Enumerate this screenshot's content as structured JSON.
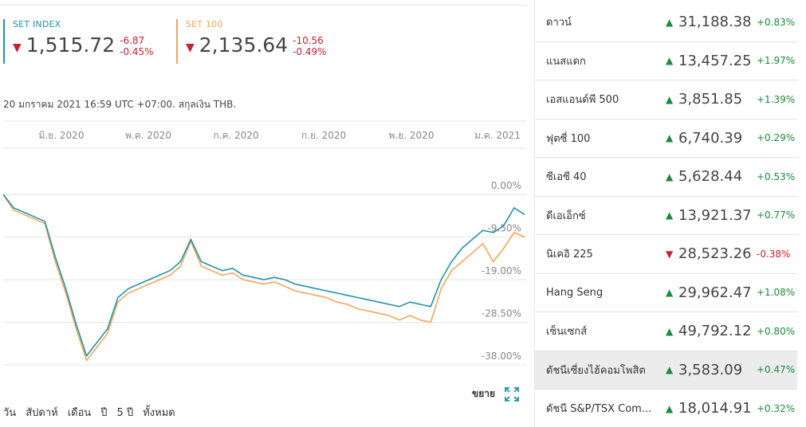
{
  "indices": [
    {
      "name": "SET INDEX",
      "value": "1,515.72",
      "change": "-6.87",
      "change_pct": "-0.45%",
      "color": "#1f93a8"
    },
    {
      "name": "SET 100",
      "value": "2,135.64",
      "change": "-10.56",
      "change_pct": "-0.49%",
      "color": "#f2a65a"
    }
  ],
  "meta": "20 มกราคม 2021 16:59 UTC +07:00. สกุลเงิน THB.",
  "chart_data": {
    "type": "line",
    "x_tick_labels": [
      "มิ.ย. 2020",
      "พ.ค. 2020",
      "ก.ค. 2020",
      "ก.ย. 2020",
      "พ.ย. 2020",
      "ม.ค. 2021"
    ],
    "y_tick_labels": [
      "0.00%",
      "-9.50%",
      "-19.00%",
      "-28.50%",
      "-38.00%"
    ],
    "ylim": [
      -38,
      0
    ],
    "x": [
      0,
      2,
      4,
      6,
      8,
      10,
      12,
      14,
      16,
      18,
      20,
      22,
      24,
      26,
      28,
      30,
      32,
      34,
      36,
      38,
      40,
      42,
      44,
      46,
      48,
      50,
      52,
      54,
      56,
      58,
      60,
      62,
      64,
      66,
      68,
      70,
      72,
      74,
      76,
      78,
      80,
      82,
      84,
      86,
      88,
      90,
      92,
      94,
      96,
      98,
      100
    ],
    "series": [
      {
        "name": "SET INDEX",
        "color": "#1f93a8",
        "values": [
          0,
          -3,
          -4,
          -5,
          -6,
          -14,
          -21,
          -29,
          -36,
          -33,
          -30,
          -23,
          -21,
          -20,
          -19,
          -18,
          -17,
          -15,
          -10,
          -15,
          -16,
          -17,
          -16.5,
          -18,
          -18.5,
          -19,
          -18.5,
          -19,
          -20,
          -20.5,
          -21,
          -21.5,
          -22,
          -22.5,
          -23,
          -23.5,
          -24,
          -24.5,
          -25,
          -24,
          -24.5,
          -25,
          -19,
          -15,
          -12,
          -10,
          -8,
          -8.5,
          -7,
          -3,
          -4.5
        ]
      },
      {
        "name": "SET 100",
        "color": "#f2a65a",
        "values": [
          0,
          -3.5,
          -4.5,
          -5.5,
          -6.5,
          -15,
          -22,
          -30,
          -37,
          -34,
          -31,
          -24,
          -22,
          -21,
          -20,
          -19,
          -18,
          -16,
          -10.5,
          -16,
          -17,
          -18,
          -17.5,
          -19,
          -19.5,
          -20,
          -19.5,
          -20.5,
          -21.5,
          -22,
          -22.5,
          -23,
          -24,
          -24.5,
          -25.5,
          -26,
          -26.5,
          -27,
          -28,
          -27,
          -28,
          -28.5,
          -21,
          -17,
          -15,
          -13,
          -11,
          -15,
          -12,
          -8.5,
          -9.5
        ]
      }
    ]
  },
  "expand_label": "ขยาย",
  "ranges": [
    "วัน",
    "สัปดาห์",
    "เดือน",
    "ปี",
    "5 ปี",
    "ทั้งหมด"
  ],
  "markets": [
    {
      "name": "ดาวน์",
      "value": "31,188.38",
      "change": "+0.83%",
      "dir": "up"
    },
    {
      "name": "แนสแดก",
      "value": "13,457.25",
      "change": "+1.97%",
      "dir": "up"
    },
    {
      "name": "เอสแอนด์พี 500",
      "value": "3,851.85",
      "change": "+1.39%",
      "dir": "up"
    },
    {
      "name": "ฟุตซี่ 100",
      "value": "6,740.39",
      "change": "+0.29%",
      "dir": "up"
    },
    {
      "name": "ซีเอซี 40",
      "value": "5,628.44",
      "change": "+0.53%",
      "dir": "up"
    },
    {
      "name": "ดีเอเอ็กซ์",
      "value": "13,921.37",
      "change": "+0.77%",
      "dir": "up"
    },
    {
      "name": "นิเคอิ 225",
      "value": "28,523.26",
      "change": "-0.38%",
      "dir": "down"
    },
    {
      "name": "Hang Seng",
      "value": "29,962.47",
      "change": "+1.08%",
      "dir": "up"
    },
    {
      "name": "เซ็นเซกส์",
      "value": "49,792.12",
      "change": "+0.80%",
      "dir": "up"
    },
    {
      "name": "ดัชนีเซี่ยงไฮ้คอมโพสิต",
      "value": "3,583.09",
      "change": "+0.47%",
      "dir": "up"
    },
    {
      "name": "ดัชนี S&P/TSX Com...",
      "value": "18,014.91",
      "change": "+0.32%",
      "dir": "up"
    }
  ]
}
